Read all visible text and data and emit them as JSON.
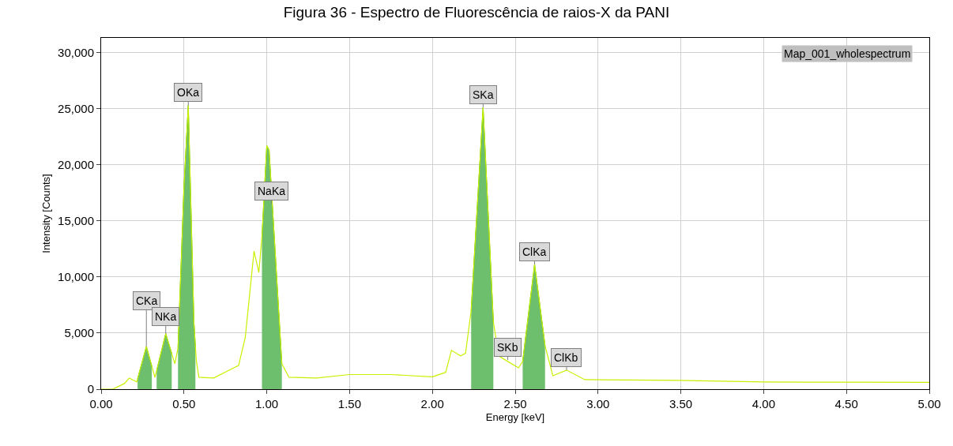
{
  "chart_data": {
    "type": "line",
    "title": "Figura 36 - Espectro de Fluorescência de raios-X da PANI",
    "xlabel": "Energy [keV]",
    "ylabel": "Intensity [Counts]",
    "xlim": [
      0,
      5
    ],
    "xticks": [
      {
        "value": 0,
        "label": "0.00"
      },
      {
        "value": 0.5,
        "label": "0.50"
      },
      {
        "value": 1,
        "label": "1.00"
      },
      {
        "value": 1.5,
        "label": "1.50"
      },
      {
        "value": 2,
        "label": "2.00"
      },
      {
        "value": 2.5,
        "label": "2.50"
      },
      {
        "value": 3,
        "label": "3.00"
      },
      {
        "value": 3.5,
        "label": "3.50"
      },
      {
        "value": 4,
        "label": "4.00"
      },
      {
        "value": 4.5,
        "label": "4.50"
      },
      {
        "value": 5,
        "label": "5.00"
      }
    ],
    "ylim": [
      0,
      31300
    ],
    "yticks": [
      {
        "value": 0,
        "label": "0"
      },
      {
        "value": 5000,
        "label": "5,000"
      },
      {
        "value": 10000,
        "label": "10,000"
      },
      {
        "value": 15000,
        "label": "15,000"
      },
      {
        "value": 20000,
        "label": "20,000"
      },
      {
        "value": 25000,
        "label": "25,000"
      },
      {
        "value": 30000,
        "label": "30,000"
      }
    ],
    "grid": true,
    "series": [
      {
        "type": "area",
        "color": "#6dbf6d",
        "x": [
          0.22,
          0.273,
          0.306
        ],
        "values": [
          920,
          3800,
          2050
        ]
      },
      {
        "type": "area",
        "color": "#6dbf6d",
        "x": [
          0.335,
          0.39,
          0.426
        ],
        "values": [
          1650,
          4950,
          3190
        ]
      },
      {
        "type": "area",
        "color": "#6dbf6d",
        "x": [
          0.464,
          0.5,
          0.526,
          0.56,
          0.569
        ],
        "values": [
          3670,
          18000,
          25300,
          6000,
          3800
        ]
      },
      {
        "type": "area",
        "color": "#6dbf6d",
        "x": [
          0.971,
          1.0,
          1.014,
          1.091
        ],
        "values": [
          13600,
          21700,
          21300,
          2260
        ]
      },
      {
        "type": "area",
        "color": "#6dbf6d",
        "x": [
          2.234,
          2.306,
          2.368
        ],
        "values": [
          7000,
          25100,
          6000
        ]
      },
      {
        "type": "area",
        "color": "#6dbf6d",
        "x": [
          2.545,
          2.617,
          2.68
        ],
        "values": [
          2470,
          11100,
          3880
        ]
      },
      {
        "color": "#c8f000",
        "x": [
          0,
          0.07,
          0.14,
          0.17,
          0.215,
          0.22,
          0.273,
          0.306,
          0.325,
          0.335,
          0.39,
          0.426,
          0.445,
          0.464,
          0.5,
          0.526,
          0.56,
          0.569,
          0.575,
          0.59,
          0.68,
          0.8,
          0.83,
          0.87,
          0.923,
          0.952,
          0.971,
          1.0,
          1.014,
          1.091,
          1.134,
          1.3,
          1.5,
          1.75,
          2.0,
          2.08,
          2.115,
          2.17,
          2.2,
          2.234,
          2.306,
          2.368,
          2.4,
          2.455,
          2.52,
          2.545,
          2.617,
          2.68,
          2.727,
          2.81,
          2.92,
          3.49,
          4.0,
          4.5,
          5.0
        ],
        "values": [
          0,
          0,
          500,
          990,
          650,
          920,
          3800,
          2050,
          1050,
          1650,
          4950,
          3190,
          2260,
          3670,
          18000,
          25300,
          6000,
          3800,
          2500,
          1060,
          1000,
          1900,
          2100,
          4600,
          12300,
          10400,
          13600,
          21700,
          21300,
          2260,
          1060,
          1000,
          1300,
          1300,
          1100,
          1500,
          3460,
          2970,
          3200,
          7000,
          25100,
          6000,
          2970,
          2470,
          1900,
          2470,
          11100,
          3880,
          1200,
          1700,
          850,
          780,
          640,
          620,
          600
        ]
      }
    ],
    "annotations": [
      {
        "text": "CKa",
        "x": 0.273,
        "y": 3800
      },
      {
        "text": "NKa",
        "x": 0.39,
        "y": 4950
      },
      {
        "text": "OKa",
        "x": 0.526,
        "y": 25300
      },
      {
        "text": "NaKa",
        "x": 1.029,
        "y": 16500
      },
      {
        "text": "SKa",
        "x": 2.306,
        "y": 25100
      },
      {
        "text": "SKb",
        "x": 2.455,
        "y": 2600
      },
      {
        "text": "ClKa",
        "x": 2.617,
        "y": 11100
      },
      {
        "text": "ClKb",
        "x": 2.81,
        "y": 1700
      },
      "Map_001_wholespectrum"
    ]
  }
}
